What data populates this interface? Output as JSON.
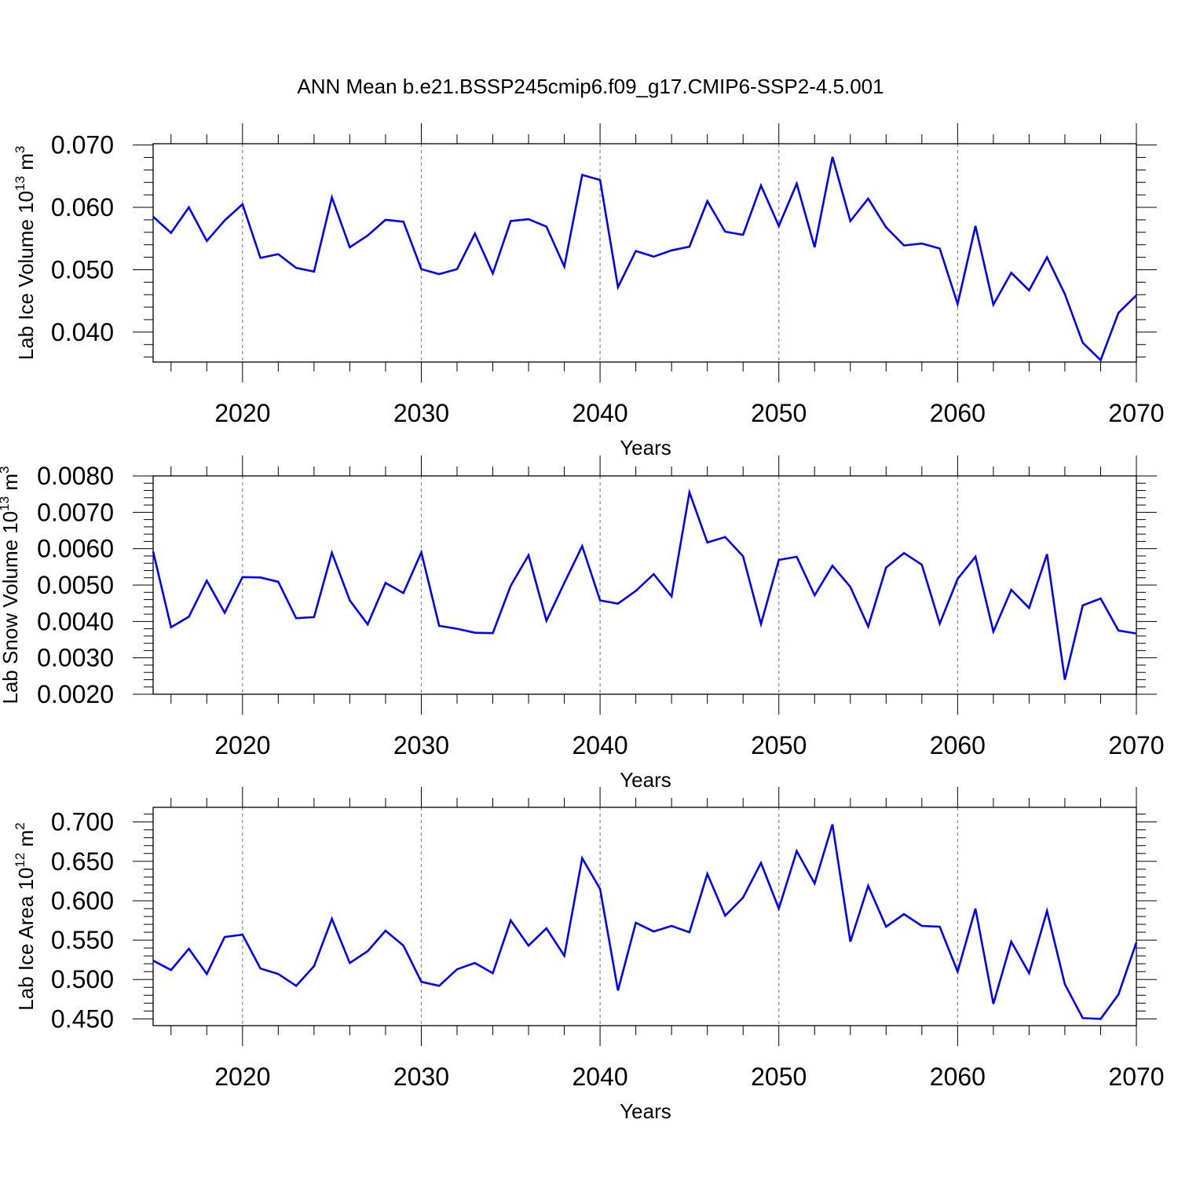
{
  "title": "ANN Mean b.e21.BSSP245cmip6.f09_g17.CMIP6-SSP2-4.5.001",
  "line_color": "#0000ff",
  "chart_data": [
    {
      "type": "line",
      "xlabel": "Years",
      "ylabel": "Lab Ice Volume 10",
      "ylabel_sup": "13",
      "ylabel_unit": " m",
      "ylabel_unit_sup": "3",
      "xlim": [
        2015,
        2070
      ],
      "ylim": [
        0.0352,
        0.0702
      ],
      "xticks": [
        2020,
        2030,
        2040,
        2050,
        2060,
        2070
      ],
      "yticks": [
        "0.040",
        "0.050",
        "0.060",
        "0.070"
      ],
      "grid": "vertical dashed at major x ticks",
      "series": [
        {
          "x": [
            2015,
            2016,
            2017,
            2018,
            2019,
            2020,
            2021,
            2022,
            2023,
            2024,
            2025,
            2026,
            2027,
            2028,
            2029,
            2030,
            2031,
            2032,
            2033,
            2034,
            2035,
            2036,
            2037,
            2038,
            2039,
            2040,
            2041,
            2042,
            2043,
            2044,
            2045,
            2046,
            2047,
            2048,
            2049,
            2050,
            2051,
            2052,
            2053,
            2054,
            2055,
            2056,
            2057,
            2058,
            2059,
            2060,
            2061,
            2062,
            2063,
            2064,
            2065,
            2066,
            2067,
            2068,
            2069,
            2070
          ],
          "values": [
            0.0585,
            0.0559,
            0.06,
            0.0546,
            0.0579,
            0.0605,
            0.0519,
            0.0525,
            0.0503,
            0.0497,
            0.0616,
            0.0536,
            0.0555,
            0.058,
            0.0577,
            0.0501,
            0.0493,
            0.0501,
            0.0558,
            0.0494,
            0.0578,
            0.0581,
            0.0569,
            0.0505,
            0.0652,
            0.0644,
            0.0472,
            0.053,
            0.0521,
            0.0531,
            0.0537,
            0.061,
            0.0561,
            0.0556,
            0.0635,
            0.057,
            0.0638,
            0.0536,
            0.0681,
            0.0578,
            0.0614,
            0.0568,
            0.0539,
            0.0542,
            0.0534,
            0.0445,
            0.057,
            0.0444,
            0.0495,
            0.0467,
            0.052,
            0.0461,
            0.0383,
            0.0355,
            0.0431,
            0.0459
          ]
        }
      ]
    },
    {
      "type": "line",
      "xlabel": "Years",
      "ylabel": "Lab Snow Volume 10",
      "ylabel_sup": "13",
      "ylabel_unit": " m",
      "ylabel_unit_sup": "3",
      "xlim": [
        2015,
        2070
      ],
      "ylim": [
        0.002,
        0.008
      ],
      "xticks": [
        2020,
        2030,
        2040,
        2050,
        2060,
        2070
      ],
      "yticks": [
        "0.0020",
        "0.0030",
        "0.0040",
        "0.0050",
        "0.0060",
        "0.0070",
        "0.0080"
      ],
      "grid": "vertical dashed at major x ticks",
      "series": [
        {
          "x": [
            2015,
            2016,
            2017,
            2018,
            2019,
            2020,
            2021,
            2022,
            2023,
            2024,
            2025,
            2026,
            2027,
            2028,
            2029,
            2030,
            2031,
            2032,
            2033,
            2034,
            2035,
            2036,
            2037,
            2038,
            2039,
            2040,
            2041,
            2042,
            2043,
            2044,
            2045,
            2046,
            2047,
            2048,
            2049,
            2050,
            2051,
            2052,
            2053,
            2054,
            2055,
            2056,
            2057,
            2058,
            2059,
            2060,
            2061,
            2062,
            2063,
            2064,
            2065,
            2066,
            2067,
            2068,
            2069,
            2070
          ],
          "values": [
            0.00592,
            0.00384,
            0.00413,
            0.00512,
            0.00424,
            0.00522,
            0.00521,
            0.00509,
            0.00409,
            0.00412,
            0.00589,
            0.00458,
            0.00392,
            0.00506,
            0.00478,
            0.0059,
            0.00388,
            0.0038,
            0.00369,
            0.00368,
            0.00498,
            0.00582,
            0.00402,
            0.00506,
            0.00607,
            0.00458,
            0.00449,
            0.00484,
            0.0053,
            0.00469,
            0.00755,
            0.00617,
            0.00632,
            0.00579,
            0.00393,
            0.00569,
            0.00578,
            0.00472,
            0.00553,
            0.00495,
            0.00386,
            0.00548,
            0.00588,
            0.00556,
            0.00394,
            0.00517,
            0.00578,
            0.00372,
            0.00487,
            0.00437,
            0.00585,
            0.0024,
            0.00444,
            0.00463,
            0.00375,
            0.00367
          ]
        }
      ]
    },
    {
      "type": "line",
      "xlabel": "Years",
      "ylabel": "Lab Ice Area 10",
      "ylabel_sup": "12",
      "ylabel_unit": " m",
      "ylabel_unit_sup": "2",
      "xlim": [
        2015,
        2070
      ],
      "ylim": [
        0.4414,
        0.7186
      ],
      "xticks": [
        2020,
        2030,
        2040,
        2050,
        2060,
        2070
      ],
      "yticks": [
        "0.450",
        "0.500",
        "0.550",
        "0.600",
        "0.650",
        "0.700"
      ],
      "grid": "vertical dashed at major x ticks",
      "series": [
        {
          "x": [
            2015,
            2016,
            2017,
            2018,
            2019,
            2020,
            2021,
            2022,
            2023,
            2024,
            2025,
            2026,
            2027,
            2028,
            2029,
            2030,
            2031,
            2032,
            2033,
            2034,
            2035,
            2036,
            2037,
            2038,
            2039,
            2040,
            2041,
            2042,
            2043,
            2044,
            2045,
            2046,
            2047,
            2048,
            2049,
            2050,
            2051,
            2052,
            2053,
            2054,
            2055,
            2056,
            2057,
            2058,
            2059,
            2060,
            2061,
            2062,
            2063,
            2064,
            2065,
            2066,
            2067,
            2068,
            2069,
            2070
          ],
          "values": [
            0.524,
            0.512,
            0.539,
            0.507,
            0.554,
            0.557,
            0.514,
            0.507,
            0.492,
            0.517,
            0.577,
            0.521,
            0.536,
            0.562,
            0.543,
            0.497,
            0.492,
            0.513,
            0.521,
            0.508,
            0.575,
            0.543,
            0.565,
            0.53,
            0.654,
            0.615,
            0.486,
            0.572,
            0.561,
            0.568,
            0.56,
            0.634,
            0.581,
            0.604,
            0.648,
            0.59,
            0.663,
            0.622,
            0.697,
            0.548,
            0.619,
            0.567,
            0.583,
            0.568,
            0.567,
            0.51,
            0.59,
            0.469,
            0.548,
            0.508,
            0.587,
            0.494,
            0.451,
            0.45,
            0.481,
            0.547
          ]
        }
      ]
    }
  ]
}
